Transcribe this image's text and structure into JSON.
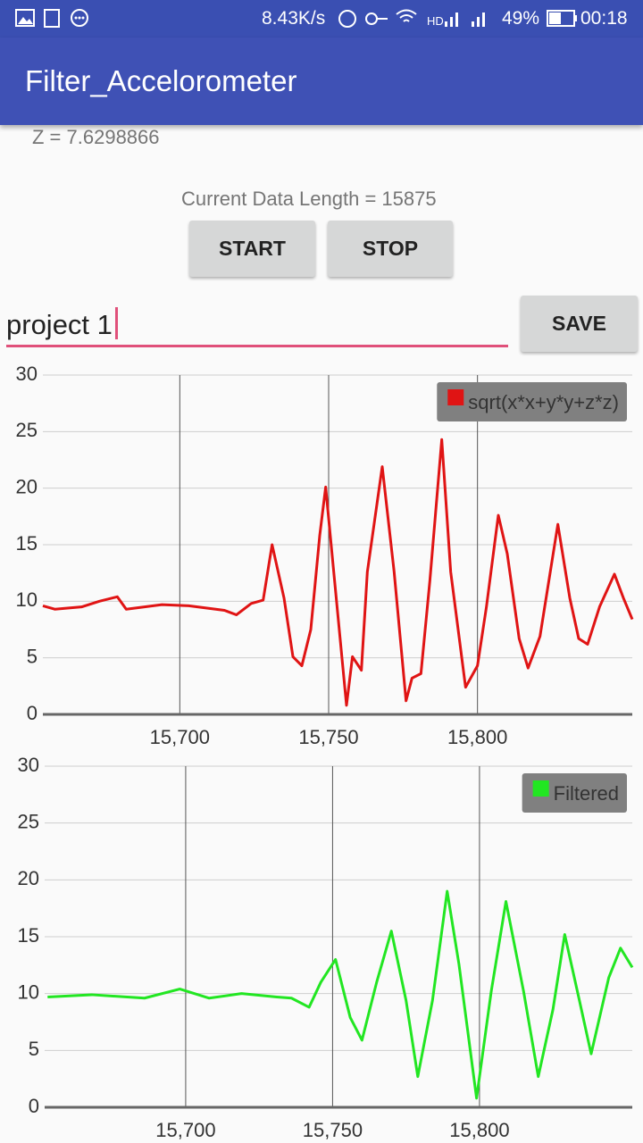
{
  "status_bar": {
    "network_speed": "8.43K/s",
    "battery": "49%",
    "time": "00:18"
  },
  "app_bar": {
    "title": "Filter_Accelorometer"
  },
  "z_label": "Z = 7.6298866",
  "data_length_label": "Current Data Length = 15875",
  "buttons": {
    "start": "START",
    "stop": "STOP",
    "save": "SAVE"
  },
  "input": {
    "value": "project 1"
  },
  "chart_data": [
    {
      "type": "line",
      "x": [
        15654,
        15658,
        15667,
        15673,
        15679,
        15682,
        15694,
        15703,
        15715,
        15719,
        15724,
        15728,
        15731,
        15735,
        15738,
        15741,
        15744,
        15747,
        15749,
        15752,
        15756,
        15758,
        15761,
        15763,
        15768,
        15772,
        15776,
        15778,
        15781,
        15784,
        15788,
        15791,
        15796,
        15800,
        15803,
        15807,
        15810,
        15814,
        15817,
        15821,
        15827,
        15831,
        15834,
        15837,
        15841,
        15846,
        15849,
        15852
      ],
      "series": [
        {
          "name": "sqrt(x*x+y*y+z*z)",
          "color": "#e01414",
          "values": [
            9.6,
            9.3,
            9.5,
            10.0,
            10.4,
            9.3,
            9.7,
            9.6,
            9.2,
            8.8,
            9.8,
            10.1,
            15.0,
            10.3,
            5.1,
            4.3,
            7.5,
            15.8,
            20.1,
            11.8,
            0.8,
            5.1,
            3.9,
            12.6,
            21.9,
            12.6,
            1.2,
            3.2,
            3.6,
            11.8,
            24.3,
            12.6,
            2.4,
            4.3,
            9.5,
            17.6,
            14.2,
            6.7,
            4.1,
            6.9,
            16.8,
            10.3,
            6.7,
            6.2,
            9.5,
            12.4,
            10.3,
            8.4
          ]
        }
      ],
      "xlim": [
        15654,
        15852
      ],
      "ylim": [
        0,
        30
      ],
      "xticks": [
        {
          "value": 15700,
          "label": "15,700"
        },
        {
          "value": 15750,
          "label": "15,750"
        },
        {
          "value": 15800,
          "label": "15,800"
        }
      ],
      "yticks": [
        0,
        5,
        10,
        15,
        20,
        25,
        30
      ],
      "grid": true,
      "legend": "top-right"
    },
    {
      "type": "line",
      "x": [
        15653,
        15668,
        15686,
        15698,
        15708,
        15719,
        15731,
        15736,
        15742,
        15746,
        15751,
        15756,
        15760,
        15765,
        15770,
        15775,
        15779,
        15784,
        15789,
        15793,
        15799,
        15804,
        15809,
        15815,
        15820,
        15825,
        15829,
        15834,
        15838,
        15844,
        15848,
        15852
      ],
      "series": [
        {
          "name": "Filtered",
          "color": "#22e622",
          "values": [
            9.7,
            9.9,
            9.6,
            10.4,
            9.6,
            10.0,
            9.7,
            9.6,
            8.8,
            11.0,
            13.0,
            7.9,
            5.9,
            11.0,
            15.5,
            9.4,
            2.7,
            9.4,
            19.0,
            12.6,
            0.8,
            10.2,
            18.1,
            10.2,
            2.7,
            8.6,
            15.2,
            9.4,
            4.7,
            11.4,
            14.0,
            12.3
          ]
        }
      ],
      "xlim": [
        15652,
        15852
      ],
      "ylim": [
        0,
        30
      ],
      "xticks": [
        {
          "value": 15700,
          "label": "15,700"
        },
        {
          "value": 15750,
          "label": "15,750"
        },
        {
          "value": 15800,
          "label": "15,800"
        }
      ],
      "yticks": [
        0,
        5,
        10,
        15,
        20,
        25,
        30
      ],
      "grid": true,
      "legend": "top-right"
    }
  ]
}
